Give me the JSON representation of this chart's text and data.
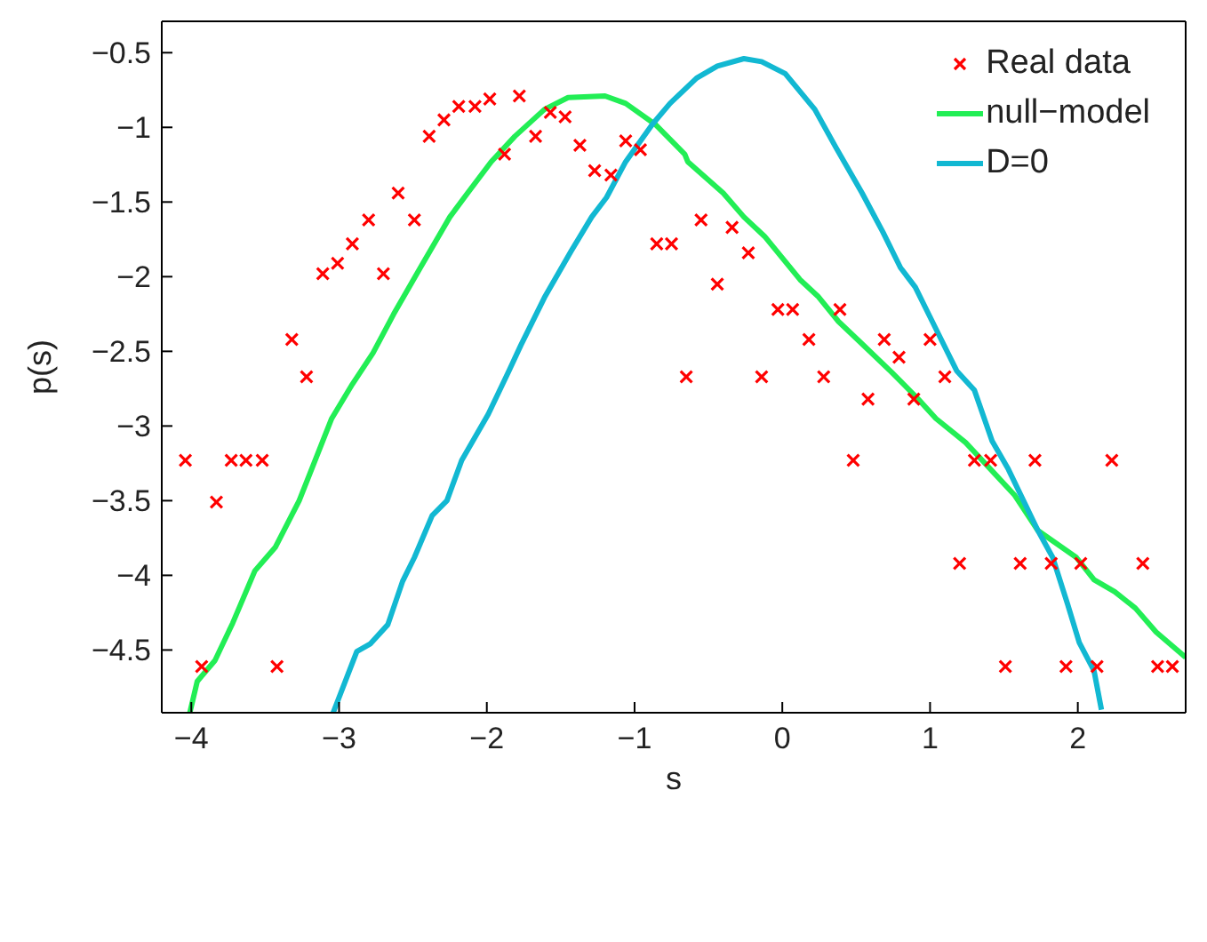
{
  "chart_data": {
    "type": "line",
    "xlabel": "s",
    "ylabel": "p(s)",
    "xlim": [
      -4.2,
      2.73
    ],
    "ylim": [
      -4.92,
      -0.29
    ],
    "xticks": [
      {
        "value": -4,
        "label": "−4"
      },
      {
        "value": -3,
        "label": "−3"
      },
      {
        "value": -2,
        "label": "−2"
      },
      {
        "value": -1,
        "label": "−1"
      },
      0,
      1,
      2
    ],
    "yticks": [
      {
        "value": -4.5,
        "label": "−4.5"
      },
      {
        "value": -4,
        "label": "−4"
      },
      {
        "value": -3.5,
        "label": "−3.5"
      },
      {
        "value": -3,
        "label": "−3"
      },
      {
        "value": -2.5,
        "label": "−2.5"
      },
      {
        "value": -2,
        "label": "−2"
      },
      {
        "value": -1.5,
        "label": "−1.5"
      },
      {
        "value": -1,
        "label": "−1"
      },
      {
        "value": -0.5,
        "label": "−0.5"
      }
    ],
    "legend": "top right",
    "line_style": "solid",
    "series": [
      {
        "name": "Real data",
        "type": "scatter",
        "marker": "cross",
        "color": "#ff0000",
        "x": [
          -4.04,
          -3.93,
          -3.83,
          -3.73,
          -3.63,
          -3.52,
          -3.42,
          -3.32,
          -3.22,
          -3.11,
          -3.01,
          -2.91,
          -2.8,
          -2.7,
          -2.6,
          -2.49,
          -2.39,
          -2.29,
          -2.19,
          -2.08,
          -1.98,
          -1.88,
          -1.78,
          -1.67,
          -1.57,
          -1.47,
          -1.37,
          -1.27,
          -1.16,
          -1.06,
          -0.96,
          -0.85,
          -0.75,
          -0.65,
          -0.55,
          -0.44,
          -0.34,
          -0.23,
          -0.14,
          -0.03,
          0.07,
          0.18,
          0.28,
          0.39,
          0.48,
          0.58,
          0.69,
          0.79,
          0.89,
          1.0,
          1.1,
          1.2,
          1.3,
          1.41,
          1.51,
          1.61,
          1.71,
          1.82,
          1.92,
          2.02,
          2.13,
          2.23,
          2.44,
          2.54,
          2.64
        ],
        "values": [
          -3.23,
          -4.61,
          -3.51,
          -3.23,
          -3.23,
          -3.23,
          -4.61,
          -2.42,
          -2.67,
          -1.98,
          -1.91,
          -1.78,
          -1.62,
          -1.98,
          -1.44,
          -1.62,
          -1.06,
          -0.95,
          -0.86,
          -0.86,
          -0.81,
          -1.18,
          -0.79,
          -1.06,
          -0.9,
          -0.93,
          -1.12,
          -1.29,
          -1.32,
          -1.09,
          -1.15,
          -1.78,
          -1.78,
          -2.67,
          -1.62,
          -2.05,
          -1.67,
          -1.84,
          -2.67,
          -2.22,
          -2.22,
          -2.42,
          -2.67,
          -2.22,
          -3.23,
          -2.82,
          -2.42,
          -2.54,
          -2.82,
          -2.42,
          -2.67,
          -3.92,
          -3.23,
          -3.23,
          -4.61,
          -3.92,
          -3.23,
          -3.92,
          -4.61,
          -3.92,
          -4.61,
          -3.23,
          -3.92,
          -4.61,
          -4.61
        ]
      },
      {
        "name": "null−model",
        "type": "line",
        "marker": "none",
        "color": "#22ee55",
        "x": [
          -4.01,
          -3.96,
          -3.84,
          -3.72,
          -3.57,
          -3.43,
          -3.27,
          -3.05,
          -2.91,
          -2.77,
          -2.63,
          -2.45,
          -2.25,
          -2.13,
          -1.97,
          -1.81,
          -1.61,
          -1.45,
          -1.2,
          -1.06,
          -0.86,
          -0.66,
          -0.64,
          -0.4,
          -0.26,
          -0.12,
          0.12,
          0.24,
          0.38,
          0.54,
          0.74,
          0.92,
          1.04,
          1.24,
          1.41,
          1.57,
          1.73,
          1.99,
          2.11,
          2.25,
          2.39,
          2.53,
          2.73
        ],
        "values": [
          -4.92,
          -4.71,
          -4.57,
          -4.32,
          -3.97,
          -3.81,
          -3.5,
          -2.95,
          -2.72,
          -2.51,
          -2.25,
          -1.94,
          -1.6,
          -1.44,
          -1.23,
          -1.06,
          -0.88,
          -0.8,
          -0.79,
          -0.84,
          -0.98,
          -1.18,
          -1.23,
          -1.44,
          -1.6,
          -1.73,
          -2.02,
          -2.13,
          -2.3,
          -2.45,
          -2.64,
          -2.82,
          -2.95,
          -3.11,
          -3.29,
          -3.46,
          -3.7,
          -3.88,
          -4.03,
          -4.11,
          -4.22,
          -4.38,
          -4.55
        ]
      },
      {
        "name": "D=0",
        "type": "line",
        "marker": "none",
        "color": "#12b8d2",
        "x": [
          -3.04,
          -2.88,
          -2.79,
          -2.67,
          -2.57,
          -2.49,
          -2.37,
          -2.27,
          -2.17,
          -1.99,
          -1.85,
          -1.77,
          -1.61,
          -1.43,
          -1.29,
          -1.19,
          -1.06,
          -0.88,
          -0.76,
          -0.58,
          -0.44,
          -0.26,
          -0.14,
          0.02,
          0.22,
          0.36,
          0.54,
          0.68,
          0.8,
          0.9,
          1.0,
          1.12,
          1.18,
          1.3,
          1.42,
          1.53,
          1.73,
          1.83,
          1.93,
          2.01,
          2.11,
          2.16
        ],
        "values": [
          -4.92,
          -4.51,
          -4.46,
          -4.33,
          -4.04,
          -3.88,
          -3.6,
          -3.5,
          -3.23,
          -2.92,
          -2.63,
          -2.46,
          -2.14,
          -1.83,
          -1.6,
          -1.47,
          -1.23,
          -0.98,
          -0.84,
          -0.67,
          -0.59,
          -0.54,
          -0.56,
          -0.64,
          -0.88,
          -1.13,
          -1.44,
          -1.7,
          -1.94,
          -2.07,
          -2.27,
          -2.51,
          -2.63,
          -2.76,
          -3.1,
          -3.29,
          -3.7,
          -3.88,
          -4.19,
          -4.45,
          -4.64,
          -4.9
        ]
      }
    ]
  }
}
